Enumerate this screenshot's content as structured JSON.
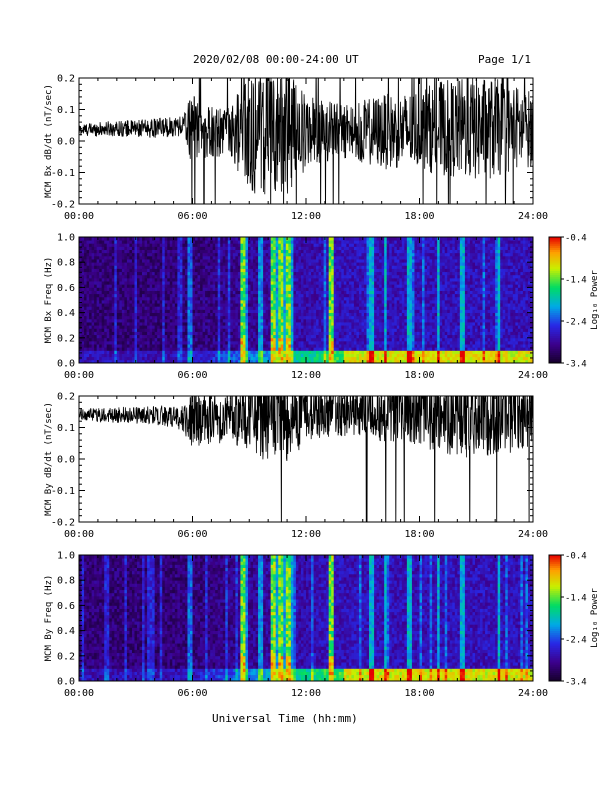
{
  "header": {
    "title": "2020/02/08  00:00-24:00 UT",
    "page": "Page 1/1"
  },
  "footer": {
    "xlabel": "Universal Time (hh:mm)"
  },
  "chart_data": [
    {
      "type": "line",
      "ylabel": "MCM Bx dB/dt (nT/sec)",
      "xlim": [
        0,
        24
      ],
      "ylim": [
        -0.2,
        0.2
      ],
      "xticks": [
        "00:00",
        "06:00",
        "12:00",
        "18:00",
        "24:00"
      ],
      "yticks": [
        "-0.2",
        "-0.1",
        "0.0",
        "0.1",
        "0.2"
      ],
      "series": [
        {
          "x": [
            0,
            2,
            4,
            5.5,
            6,
            7,
            8,
            9,
            10,
            11,
            12,
            13,
            14,
            15,
            16,
            17,
            18,
            19,
            20,
            21,
            22,
            23,
            24
          ],
          "center": [
            0.035,
            0.04,
            0.04,
            0.05,
            0.04,
            0.03,
            0.03,
            0.03,
            0.03,
            0.03,
            0.03,
            0.03,
            0.03,
            0.03,
            0.03,
            0.03,
            0.04,
            0.04,
            0.04,
            0.04,
            0.04,
            0.04,
            0.04
          ],
          "amplitude": [
            0.02,
            0.025,
            0.03,
            0.035,
            0.12,
            0.08,
            0.08,
            0.2,
            0.2,
            0.2,
            0.12,
            0.1,
            0.09,
            0.1,
            0.12,
            0.12,
            0.13,
            0.15,
            0.16,
            0.17,
            0.16,
            0.14,
            0.12
          ]
        }
      ]
    },
    {
      "type": "heatmap",
      "ylabel": "MCM Bx Freq (Hz)",
      "colorbar_label": "Log₁₀ Power",
      "xlim": [
        0,
        24
      ],
      "ylim": [
        0,
        1
      ],
      "zlim": [
        -3.4,
        -0.4
      ],
      "xticks": [
        "00:00",
        "06:00",
        "12:00",
        "18:00",
        "24:00"
      ],
      "yticks": [
        "0.0",
        "0.2",
        "0.4",
        "0.6",
        "0.8",
        "1.0"
      ],
      "cticks": [
        "-0.4",
        "-1.4",
        "-2.4",
        "-3.4"
      ],
      "bright_bands_hours": [
        8.7,
        10.3,
        10.7,
        11.1,
        13.3
      ],
      "broadband_hours": [
        5.9,
        8.8,
        9.6,
        10.4,
        10.6,
        10.9,
        11.2,
        15.5,
        16.2,
        17.5,
        19.0,
        20.3,
        22.2
      ]
    },
    {
      "type": "line",
      "ylabel": "MCM By dB/dt (nT/sec)",
      "xlim": [
        0,
        24
      ],
      "ylim": [
        -0.2,
        0.2
      ],
      "xticks": [
        "00:00",
        "06:00",
        "12:00",
        "18:00",
        "24:00"
      ],
      "yticks": [
        "-0.2",
        "-0.1",
        "0.0",
        "0.1",
        "0.2"
      ],
      "series": [
        {
          "x": [
            0,
            2,
            4,
            5.5,
            6,
            7,
            8,
            9,
            10,
            11,
            12,
            13,
            14,
            15,
            16,
            17,
            18,
            19,
            20,
            21,
            22,
            23,
            24
          ],
          "center": [
            0.14,
            0.14,
            0.14,
            0.13,
            0.13,
            0.13,
            0.13,
            0.14,
            0.14,
            0.14,
            0.15,
            0.15,
            0.15,
            0.15,
            0.15,
            0.15,
            0.15,
            0.15,
            0.15,
            0.15,
            0.15,
            0.15,
            0.15
          ],
          "amplitude": [
            0.02,
            0.025,
            0.03,
            0.04,
            0.1,
            0.08,
            0.08,
            0.12,
            0.15,
            0.15,
            0.1,
            0.08,
            0.08,
            0.08,
            0.1,
            0.1,
            0.12,
            0.13,
            0.14,
            0.15,
            0.14,
            0.13,
            0.12
          ]
        }
      ]
    },
    {
      "type": "heatmap",
      "ylabel": "MCM By Freq (Hz)",
      "colorbar_label": "Log₁₀ Power",
      "xlim": [
        0,
        24
      ],
      "ylim": [
        0,
        1
      ],
      "zlim": [
        -3.4,
        -0.4
      ],
      "xticks": [
        "00:00",
        "06:00",
        "12:00",
        "18:00",
        "24:00"
      ],
      "yticks": [
        "0.0",
        "0.2",
        "0.4",
        "0.6",
        "0.8",
        "1.0"
      ],
      "cticks": [
        "-0.4",
        "-1.4",
        "-2.4",
        "-3.4"
      ],
      "bright_bands_hours": [
        8.7,
        10.3,
        10.7,
        11.1,
        13.3
      ],
      "broadband_hours": [
        5.9,
        8.8,
        9.6,
        10.4,
        10.6,
        10.9,
        11.2,
        15.5,
        16.2,
        17.5,
        19.0,
        20.3,
        22.2
      ]
    }
  ]
}
